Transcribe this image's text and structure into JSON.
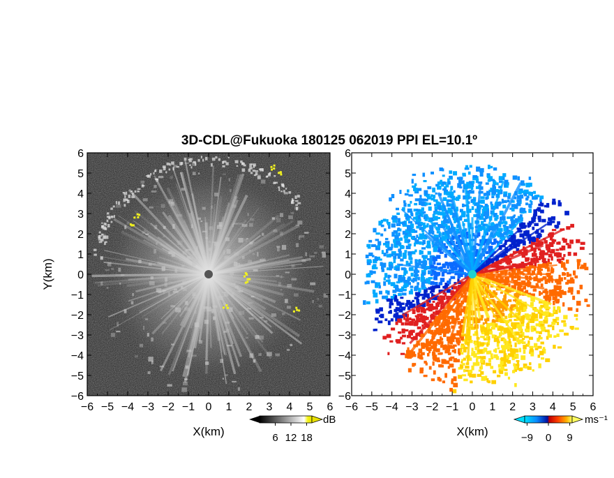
{
  "chart_data": [
    {
      "type": "heatmap",
      "panel": "reflectivity",
      "title": "3D-CDL@Fukuoka 180125 062019 PPI EL=10.1º",
      "xlabel": "X(km)",
      "ylabel": "Y(km)",
      "xlim": [
        -6,
        6
      ],
      "ylim": [
        -6,
        6
      ],
      "xticks": [
        "−6",
        "−5",
        "−4",
        "−3",
        "−2",
        "−1",
        "0",
        "1",
        "2",
        "3",
        "4",
        "5",
        "6"
      ],
      "yticks": [
        "−6",
        "−5",
        "−4",
        "−3",
        "−2",
        "−1",
        "0",
        "1",
        "2",
        "3",
        "4",
        "5",
        "6"
      ],
      "colorbar": {
        "unit": "dB",
        "ticks": [
          "6",
          "12",
          "18"
        ],
        "range": [
          0,
          20
        ],
        "colormap": "grayscale to yellow"
      },
      "background_color": "#2a2a2a",
      "echo_color": "#d8d8d8",
      "high_color": "#f0f020",
      "echo_radius_km": 6
    },
    {
      "type": "heatmap",
      "panel": "doppler_velocity",
      "xlabel": "X(km)",
      "xlim": [
        -6,
        6
      ],
      "ylim": [
        -6,
        6
      ],
      "xticks": [
        "−6",
        "−5",
        "−4",
        "−3",
        "−2",
        "−1",
        "0",
        "1",
        "2",
        "3",
        "4",
        "5",
        "6"
      ],
      "yticks": [
        "−6",
        "−5",
        "−4",
        "−3",
        "−2",
        "−1",
        "0",
        "1",
        "2",
        "3",
        "4",
        "5",
        "6"
      ],
      "colorbar": {
        "unit": "ms⁻¹",
        "ticks": [
          "−9",
          "0",
          "9"
        ],
        "range": [
          -10,
          10
        ],
        "colormap": "cyan-blue-red-orange-yellow"
      },
      "background_color": "#ffffff",
      "negative_colors": [
        "#00c8ff",
        "#0a6bff",
        "#0022cc"
      ],
      "positive_colors": [
        "#e02020",
        "#ff6a00",
        "#ffd000",
        "#ffff40"
      ]
    }
  ]
}
